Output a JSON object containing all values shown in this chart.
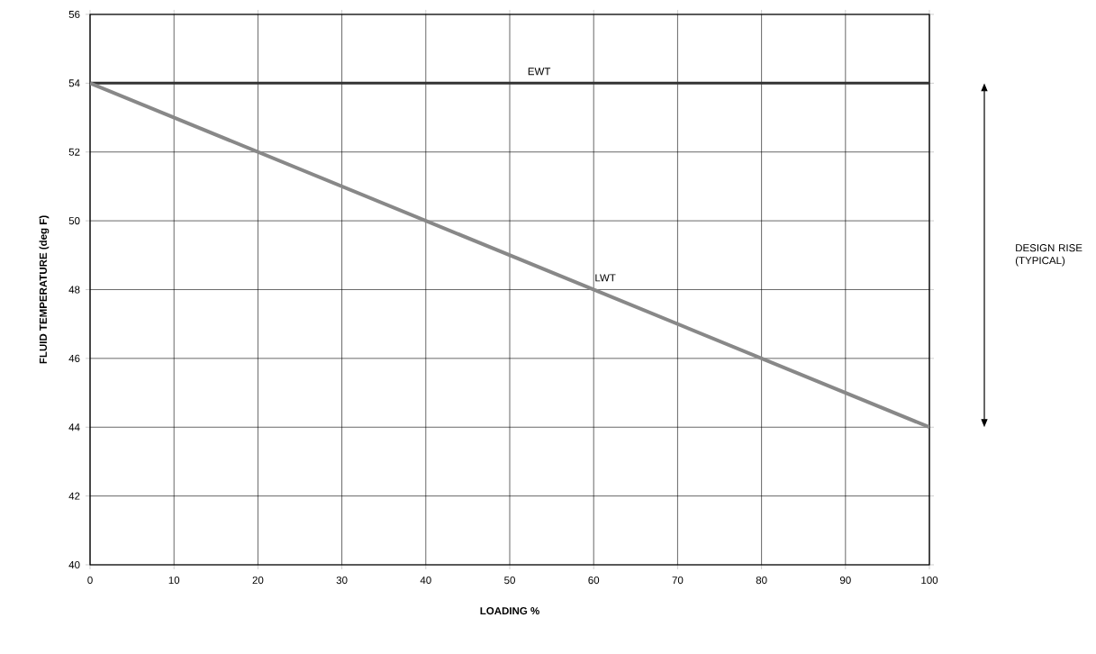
{
  "chart_data": {
    "type": "line",
    "xlabel": "LOADING %",
    "ylabel": "FLUID TEMPERATURE (deg F)",
    "x": [
      0,
      100
    ],
    "series": [
      {
        "name": "EWT",
        "color": "#333333",
        "values": [
          54,
          54
        ]
      },
      {
        "name": "LWT",
        "color": "#888888",
        "values": [
          54,
          44
        ]
      }
    ],
    "xlim": [
      0,
      100
    ],
    "ylim": [
      40,
      56
    ],
    "xticks": [
      0,
      10,
      20,
      30,
      40,
      50,
      60,
      70,
      80,
      90,
      100
    ],
    "yticks": [
      40,
      42,
      44,
      46,
      48,
      50,
      52,
      54,
      56
    ],
    "grid": true,
    "annotations": [
      "DESIGN RISE (TYPICAL)"
    ]
  }
}
